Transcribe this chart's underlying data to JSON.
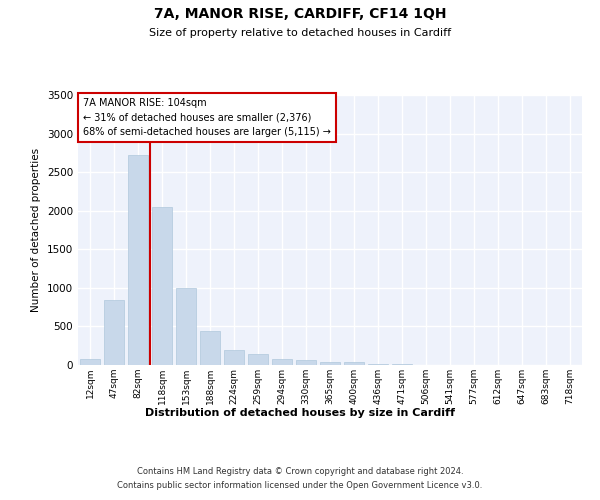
{
  "title": "7A, MANOR RISE, CARDIFF, CF14 1QH",
  "subtitle": "Size of property relative to detached houses in Cardiff",
  "xlabel": "Distribution of detached houses by size in Cardiff",
  "ylabel": "Number of detached properties",
  "footer_line1": "Contains HM Land Registry data © Crown copyright and database right 2024.",
  "footer_line2": "Contains public sector information licensed under the Open Government Licence v3.0.",
  "annotation_title": "7A MANOR RISE: 104sqm",
  "annotation_line1": "← 31% of detached houses are smaller (2,376)",
  "annotation_line2": "68% of semi-detached houses are larger (5,115) →",
  "bar_color": "#c8d8ea",
  "bar_edge_color": "#b0c8dc",
  "vline_color": "#cc0000",
  "annotation_box_edgecolor": "#cc0000",
  "background_color": "#eef2fb",
  "grid_color": "#ffffff",
  "categories": [
    "12sqm",
    "47sqm",
    "82sqm",
    "118sqm",
    "153sqm",
    "188sqm",
    "224sqm",
    "259sqm",
    "294sqm",
    "330sqm",
    "365sqm",
    "400sqm",
    "436sqm",
    "471sqm",
    "506sqm",
    "541sqm",
    "577sqm",
    "612sqm",
    "647sqm",
    "683sqm",
    "718sqm"
  ],
  "values": [
    75,
    840,
    2720,
    2050,
    1000,
    440,
    200,
    140,
    80,
    65,
    45,
    35,
    15,
    10,
    5,
    5,
    5,
    3,
    3,
    2,
    2
  ],
  "vline_x_pos": 2.5,
  "ylim": [
    0,
    3500
  ],
  "yticks": [
    0,
    500,
    1000,
    1500,
    2000,
    2500,
    3000,
    3500
  ]
}
